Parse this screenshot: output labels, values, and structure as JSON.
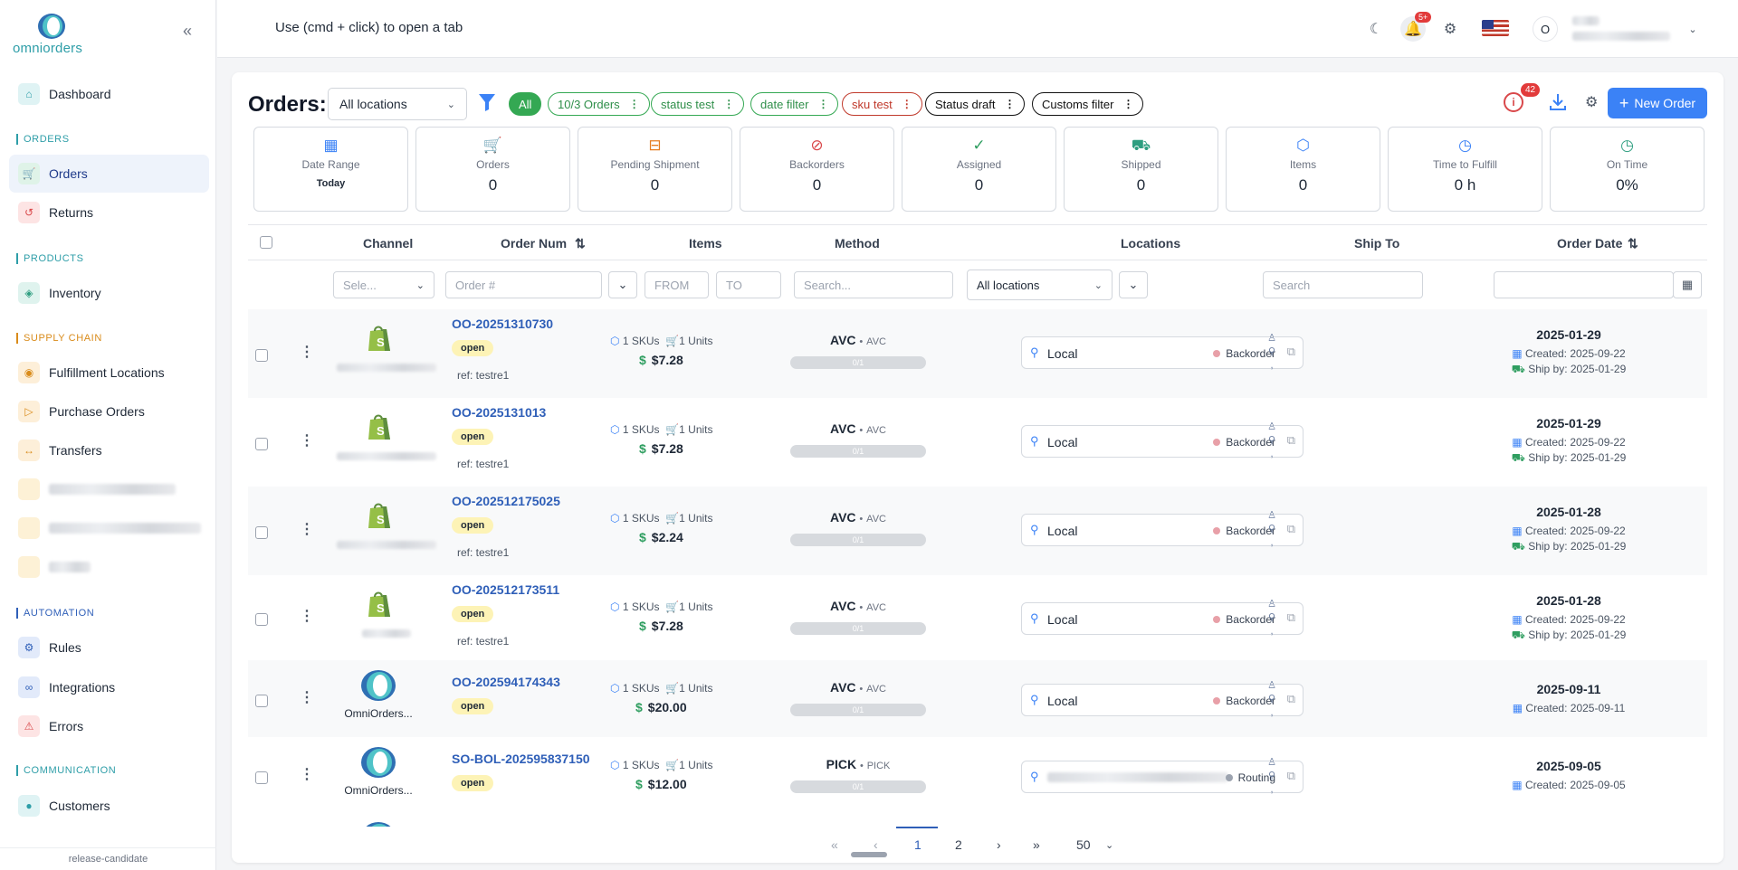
{
  "sidebar": {
    "logo_text": "omniorders",
    "collapse_glyph": "«",
    "dashboard": "Dashboard",
    "sections": {
      "orders": "ORDERS",
      "products": "PRODUCTS",
      "supply_chain": "SUPPLY CHAIN",
      "automation": "AUTOMATION",
      "communication": "COMMUNICATION"
    },
    "items": {
      "orders": "Orders",
      "returns": "Returns",
      "inventory": "Inventory",
      "fulfillment_locations": "Fulfillment Locations",
      "purchase_orders": "Purchase Orders",
      "transfers": "Transfers",
      "rules": "Rules",
      "integrations": "Integrations",
      "errors": "Errors",
      "customers": "Customers"
    },
    "release": "release-candidate",
    "colors": {
      "orders": "#2e9ea8",
      "products": "#2e9ea8",
      "supply_chain": "#d98b1a",
      "automation": "#2f5fb8",
      "communication": "#2e9ea8"
    }
  },
  "topbar": {
    "hint": "Use (cmd + click) to open a tab",
    "notification_badge": "5+",
    "avatar_initial": "O",
    "icons": [
      "moon-icon",
      "bell-icon",
      "gear-icon",
      "us-flag-icon",
      "chevron-down-icon"
    ]
  },
  "header": {
    "title": "Orders:",
    "location_select": "All locations",
    "chips": {
      "all": "All",
      "orders_10_3": "10/3 Orders",
      "status_test": "status test",
      "date_filter": "date filter",
      "sku_test": "sku test",
      "status_draft": "Status draft",
      "customs_filter": "Customs filter"
    },
    "alert_badge": "42",
    "new_order": "New Order"
  },
  "stats": {
    "date_range": {
      "label": "Date Range",
      "value": "Today"
    },
    "orders": {
      "label": "Orders",
      "value": "0"
    },
    "pending": {
      "label": "Pending Shipment",
      "value": "0"
    },
    "backorders": {
      "label": "Backorders",
      "value": "0"
    },
    "assigned": {
      "label": "Assigned",
      "value": "0"
    },
    "shipped": {
      "label": "Shipped",
      "value": "0"
    },
    "items": {
      "label": "Items",
      "value": "0"
    },
    "time_to_fulfill": {
      "label": "Time to Fulfill",
      "value": "0 h"
    },
    "on_time": {
      "label": "On Time",
      "value": "0%"
    }
  },
  "table": {
    "headers": {
      "channel": "Channel",
      "order_num": "Order Num",
      "items": "Items",
      "method": "Method",
      "locations": "Locations",
      "ship_to": "Ship To",
      "order_date": "Order Date"
    },
    "filters": {
      "channel_placeholder": "Sele...",
      "order_placeholder": "Order #",
      "from_placeholder": "FROM",
      "to_placeholder": "TO",
      "method_placeholder": "Search...",
      "locations_value": "All locations",
      "shipto_placeholder": "Search"
    },
    "rows": [
      {
        "order": "OO-20251310730",
        "status": "open",
        "ref": "ref: testre1",
        "skus": "1 SKUs",
        "units": "1 Units",
        "price": "$7.28",
        "method": "AVC",
        "method_sub": "AVC",
        "progress": "0/1",
        "location": "Local",
        "loc_status": "Backorder",
        "date": "2025-01-29",
        "created": "Created: 2025-09-22",
        "ship_by": "Ship by: 2025-01-29"
      },
      {
        "order": "OO-2025131013",
        "status": "open",
        "ref": "ref: testre1",
        "skus": "1 SKUs",
        "units": "1 Units",
        "price": "$7.28",
        "method": "AVC",
        "method_sub": "AVC",
        "progress": "0/1",
        "location": "Local",
        "loc_status": "Backorder",
        "date": "2025-01-29",
        "created": "Created: 2025-09-22",
        "ship_by": "Ship by: 2025-01-29"
      },
      {
        "order": "OO-202512175025",
        "status": "open",
        "ref": "ref: testre1",
        "skus": "1 SKUs",
        "units": "1 Units",
        "price": "$2.24",
        "method": "AVC",
        "method_sub": "AVC",
        "progress": "0/1",
        "location": "Local",
        "loc_status": "Backorder",
        "date": "2025-01-28",
        "created": "Created: 2025-09-22",
        "ship_by": "Ship by: 2025-01-29"
      },
      {
        "order": "OO-202512173511",
        "status": "open",
        "ref": "ref: testre1",
        "skus": "1 SKUs",
        "units": "1 Units",
        "price": "$7.28",
        "method": "AVC",
        "method_sub": "AVC",
        "progress": "0/1",
        "location": "Local",
        "loc_status": "Backorder",
        "date": "2025-01-28",
        "created": "Created: 2025-09-22",
        "ship_by": "Ship by: 2025-01-29"
      },
      {
        "order": "OO-202594174343",
        "status": "open",
        "channel_name": "OmniOrders...",
        "skus": "1 SKUs",
        "units": "1 Units",
        "price": "$20.00",
        "method": "AVC",
        "method_sub": "AVC",
        "progress": "0/1",
        "location": "Local",
        "loc_status": "Backorder",
        "date": "2025-09-11",
        "created": "Created: 2025-09-11"
      },
      {
        "order": "SO-BOL-202595837150",
        "status": "open",
        "channel_name": "OmniOrders...",
        "skus": "1 SKUs",
        "units": "1 Units",
        "price": "$12.00",
        "method": "PICK",
        "method_sub": "PICK",
        "progress": "0/1",
        "loc_status": "Routing",
        "date": "2025-09-05",
        "created": "Created: 2025-09-05"
      }
    ]
  },
  "pager": {
    "first": "«",
    "prev": "‹",
    "page1": "1",
    "page2": "2",
    "next": "›",
    "last": "»",
    "per_page": "50"
  }
}
